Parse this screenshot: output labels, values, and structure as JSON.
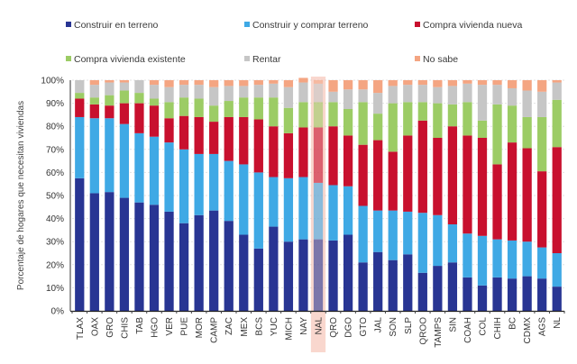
{
  "chart_data": {
    "type": "bar",
    "stacked": true,
    "title": "",
    "xlabel": "",
    "ylabel": "Porcentaje de hogares que necesitan viviendas",
    "ylim": [
      0,
      100
    ],
    "yticks": [
      "0%",
      "10%",
      "20%",
      "30%",
      "40%",
      "50%",
      "60%",
      "70%",
      "80%",
      "90%",
      "100%"
    ],
    "grid": true,
    "legend_position": "top",
    "highlight_category": "NAL",
    "highlight_color": "#f4b6a6",
    "categories": [
      "TLAX",
      "OAX",
      "GRO",
      "CHIS",
      "TAB",
      "HGO",
      "VER",
      "PUE",
      "MOR",
      "CAMP",
      "ZAC",
      "MEX",
      "BCS",
      "YUC",
      "MICH",
      "NAY",
      "NAL",
      "QRO",
      "DGO",
      "GTO",
      "JAL",
      "SON",
      "SLP",
      "QROO",
      "TAMPS",
      "SIN",
      "COAH",
      "COL",
      "CHIH",
      "BC",
      "CDMX",
      "AGS",
      "NL"
    ],
    "series": [
      {
        "name": "Construir en terreno",
        "color": "#283593",
        "values": [
          57.5,
          51,
          51.5,
          49,
          47,
          46,
          43,
          38,
          41.5,
          43.5,
          39,
          33,
          27,
          36.5,
          30,
          31,
          31,
          30.5,
          33,
          21,
          25.5,
          22,
          24.5,
          16.5,
          19.5,
          21,
          14.5,
          11,
          14.5,
          14,
          15,
          14,
          10.5
        ]
      },
      {
        "name": "Construir y comprar terreno",
        "color": "#3fa9e5",
        "values": [
          26.5,
          32.5,
          32,
          32,
          30,
          29.5,
          30,
          32,
          26.5,
          24.5,
          26,
          30.5,
          33,
          21.5,
          27.5,
          27,
          24.5,
          24,
          21,
          24.5,
          18,
          21.5,
          18.5,
          26,
          22,
          16.5,
          19,
          21.5,
          16.5,
          16.5,
          15,
          13.5,
          14.5
        ]
      },
      {
        "name": "Compra vivienda nueva",
        "color": "#c8102e",
        "values": [
          8,
          6,
          5.5,
          9,
          13,
          13.5,
          10.5,
          14.5,
          16,
          14,
          19,
          20.5,
          23,
          22,
          19.5,
          21.5,
          24,
          25.5,
          22,
          26.5,
          30.5,
          25.5,
          33,
          40,
          33.5,
          42.5,
          42.5,
          42.5,
          32.5,
          42.5,
          40.5,
          33,
          46
        ]
      },
      {
        "name": "Compra vivienda existente",
        "color": "#9ccc65",
        "values": [
          2.5,
          3,
          4.5,
          5.5,
          4.5,
          3,
          7,
          8,
          8,
          7,
          7,
          8.5,
          9.5,
          12.5,
          11,
          11,
          11,
          10.5,
          11.5,
          18.5,
          11.5,
          21,
          14.5,
          8,
          15,
          9.5,
          14.5,
          7.5,
          26,
          16,
          13.5,
          23.5,
          20.5
        ]
      },
      {
        "name": "Rentar",
        "color": "#c6c6c6",
        "values": [
          5.5,
          5.5,
          5.5,
          3.5,
          5.5,
          6,
          6.5,
          5.5,
          6,
          8,
          6.5,
          5,
          5.5,
          6,
          9,
          8.5,
          8,
          4.5,
          8.5,
          5.5,
          9,
          7.5,
          7.5,
          7.5,
          7,
          8,
          8,
          15.5,
          8.5,
          7.5,
          11.5,
          11,
          7.5
        ]
      },
      {
        "name": "No sabe",
        "color": "#f4a582",
        "values": [
          0,
          2,
          1,
          1,
          0,
          2,
          3,
          2,
          2,
          3,
          2.5,
          2.5,
          2,
          1.5,
          3,
          2,
          1.5,
          5,
          4,
          4,
          5.5,
          2.5,
          2,
          2,
          3,
          2.5,
          1.5,
          2,
          2,
          3.5,
          4.5,
          5,
          1
        ]
      }
    ]
  }
}
